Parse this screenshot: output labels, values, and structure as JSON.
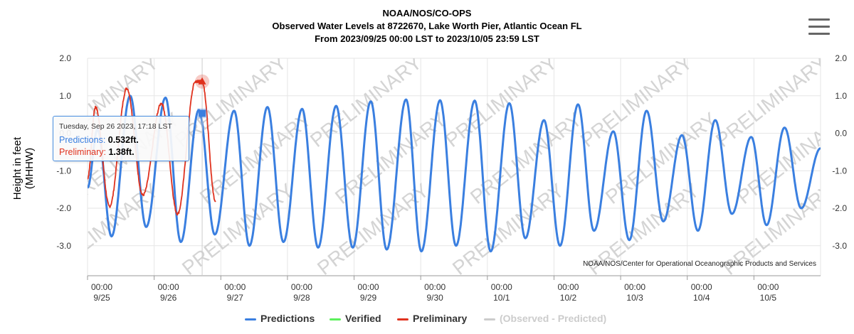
{
  "header": {
    "title": "NOAA/NOS/CO-OPS",
    "subtitle1": "Observed Water Levels at 8722670, Lake Worth Pier, Atlantic Ocean FL",
    "subtitle2": "From 2023/09/25 00:00 LST to 2023/10/05 23:59 LST"
  },
  "menu": {
    "icon": "hamburger-menu-icon"
  },
  "axis": {
    "ylabel": "Height in feet (MHHW)",
    "left_ticks": [
      "2.0",
      "1.0",
      "0.0",
      "-1.0",
      "-2.0",
      "-3.0"
    ],
    "right_ticks": [
      "2.0",
      "1.0",
      "0.0",
      "-1.0",
      "-2.0",
      "-3.0"
    ],
    "x_ticks": [
      {
        "time": "00:00",
        "date": "9/25"
      },
      {
        "time": "00:00",
        "date": "9/26"
      },
      {
        "time": "00:00",
        "date": "9/27"
      },
      {
        "time": "00:00",
        "date": "9/28"
      },
      {
        "time": "00:00",
        "date": "9/29"
      },
      {
        "time": "00:00",
        "date": "9/30"
      },
      {
        "time": "00:00",
        "date": "10/1"
      },
      {
        "time": "00:00",
        "date": "10/2"
      },
      {
        "time": "00:00",
        "date": "10/3"
      },
      {
        "time": "00:00",
        "date": "10/4"
      },
      {
        "time": "00:00",
        "date": "10/5"
      }
    ]
  },
  "watermark": "PRELIMINARY",
  "credit": "NOAA/NOS/Center for Operational Oceanographic Products and Services",
  "tooltip": {
    "header": "Tuesday, Sep 26 2023, 17:18 LST",
    "pred_label": "Predictions:",
    "pred_value": "0.532ft.",
    "prelim_label": "Preliminary:",
    "prelim_value": "1.38ft."
  },
  "legend": [
    {
      "name": "Predictions",
      "color": "#3a7fe0",
      "enabled": true
    },
    {
      "name": "Verified",
      "color": "#5cf05c",
      "enabled": true
    },
    {
      "name": "Preliminary",
      "color": "#e0321e",
      "enabled": true
    },
    {
      "name": "(Observed - Predicted)",
      "color": "#cccccc",
      "enabled": false
    }
  ],
  "colors": {
    "predictions": "#3a7fe0",
    "preliminary": "#e0321e",
    "verified": "#5cf05c",
    "grid": "#e6e6e6"
  },
  "chart_data": {
    "type": "line",
    "x_range_days": [
      0,
      11
    ],
    "ylim": [
      -3.8,
      2.0
    ],
    "grid": true,
    "legend_position": "bottom",
    "crosshair_day": 1.72,
    "series": [
      {
        "name": "Predictions",
        "points": [
          [
            0.0,
            -1.45
          ],
          [
            0.15,
            0.1
          ],
          [
            0.36,
            -2.75
          ],
          [
            0.64,
            1.0
          ],
          [
            0.88,
            -2.5
          ],
          [
            1.17,
            0.95
          ],
          [
            1.4,
            -2.9
          ],
          [
            1.67,
            0.62
          ],
          [
            1.91,
            -2.7
          ],
          [
            2.2,
            0.6
          ],
          [
            2.43,
            -3.0
          ],
          [
            2.7,
            0.7
          ],
          [
            2.94,
            -2.9
          ],
          [
            3.22,
            0.65
          ],
          [
            3.46,
            -3.05
          ],
          [
            3.73,
            0.73
          ],
          [
            3.98,
            -3.05
          ],
          [
            4.25,
            0.85
          ],
          [
            4.49,
            -3.1
          ],
          [
            4.78,
            0.9
          ],
          [
            5.01,
            -3.15
          ],
          [
            5.29,
            0.88
          ],
          [
            5.53,
            -3.0
          ],
          [
            5.81,
            0.87
          ],
          [
            6.05,
            -3.15
          ],
          [
            6.33,
            0.8
          ],
          [
            6.57,
            -2.8
          ],
          [
            6.85,
            0.35
          ],
          [
            7.09,
            -3.0
          ],
          [
            7.36,
            0.77
          ],
          [
            7.6,
            -2.6
          ],
          [
            7.89,
            0.05
          ],
          [
            8.13,
            -2.85
          ],
          [
            8.39,
            0.6
          ],
          [
            8.64,
            -2.35
          ],
          [
            8.92,
            -0.05
          ],
          [
            9.16,
            -2.6
          ],
          [
            9.42,
            0.35
          ],
          [
            9.67,
            -2.15
          ],
          [
            9.96,
            -0.1
          ],
          [
            10.19,
            -2.45
          ],
          [
            10.46,
            0.15
          ],
          [
            10.71,
            -2.0
          ],
          [
            11.0,
            -0.4
          ]
        ]
      },
      {
        "name": "Preliminary",
        "points": [
          [
            0.0,
            -1.2
          ],
          [
            0.12,
            0.7
          ],
          [
            0.33,
            -1.95
          ],
          [
            0.59,
            1.2
          ],
          [
            0.83,
            -1.65
          ],
          [
            1.11,
            0.8
          ],
          [
            1.35,
            -2.15
          ],
          [
            1.62,
            1.38
          ],
          [
            1.72,
            1.38
          ],
          [
            1.92,
            -1.8
          ]
        ]
      }
    ],
    "highlight": {
      "day": 1.72,
      "prediction": 0.532,
      "preliminary": 1.38
    }
  }
}
